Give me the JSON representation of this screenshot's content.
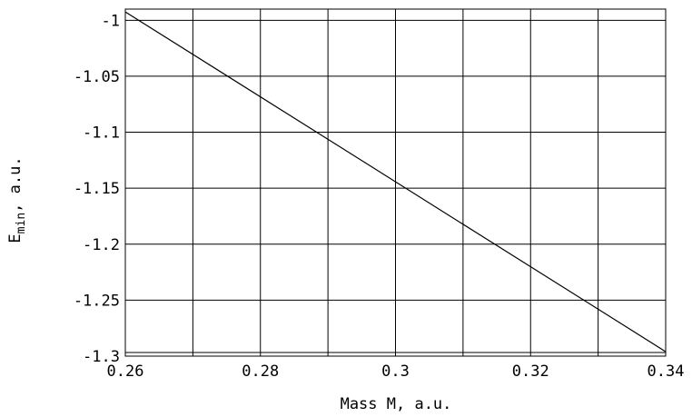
{
  "chart_data": {
    "type": "line",
    "title": "",
    "xlabel": "Mass M, a.u.",
    "ylabel": {
      "main": "E",
      "sub": "min",
      "suffix": ", a.u."
    },
    "xlim": [
      0.26,
      0.34
    ],
    "ylim": [
      -1.3,
      -0.99
    ],
    "grid": true,
    "x_ticks": [
      {
        "value": 0.26,
        "label": "0.26"
      },
      {
        "value": 0.27,
        "label": ""
      },
      {
        "value": 0.28,
        "label": "0.28"
      },
      {
        "value": 0.29,
        "label": ""
      },
      {
        "value": 0.3,
        "label": "0.3"
      },
      {
        "value": 0.31,
        "label": ""
      },
      {
        "value": 0.32,
        "label": "0.32"
      },
      {
        "value": 0.33,
        "label": ""
      },
      {
        "value": 0.34,
        "label": "0.34"
      }
    ],
    "y_ticks": [
      {
        "value": -1.0,
        "label": "-1"
      },
      {
        "value": -1.05,
        "label": "-1.05"
      },
      {
        "value": -1.1,
        "label": "-1.1"
      },
      {
        "value": -1.15,
        "label": "-1.15"
      },
      {
        "value": -1.2,
        "label": "-1.2"
      },
      {
        "value": -1.25,
        "label": "-1.25"
      },
      {
        "value": -1.3,
        "label": "-1.3"
      }
    ],
    "series": [
      {
        "x": [
          0.26,
          0.34
        ],
        "y": [
          -0.9925,
          -1.296
        ]
      }
    ]
  }
}
